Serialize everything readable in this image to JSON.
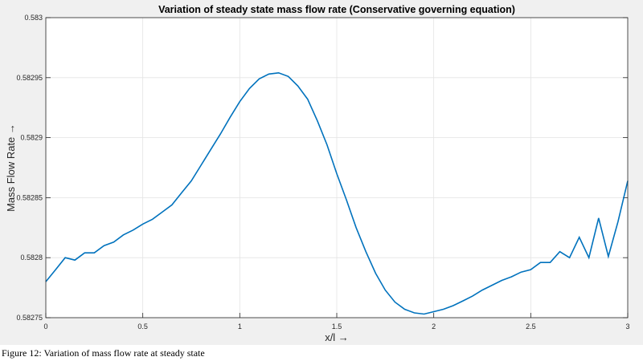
{
  "chart_data": {
    "type": "line",
    "title": "Variation of steady state mass flow rate (Conservative governing equation)",
    "xlabel": "x/l →",
    "ylabel": "Mass Flow Rate →",
    "xlim": [
      0,
      3
    ],
    "ylim": [
      0.58275,
      0.583
    ],
    "xticks": [
      0,
      0.5,
      1,
      1.5,
      2,
      2.5,
      3
    ],
    "xtick_labels": [
      "0",
      "0.5",
      "1",
      "1.5",
      "2",
      "2.5",
      "3"
    ],
    "yticks": [
      0.58275,
      0.5828,
      0.58285,
      0.5829,
      0.58295,
      0.583
    ],
    "ytick_labels": [
      "0.58275",
      "0.5828",
      "0.58285",
      "0.5829",
      "0.58295",
      "0.583"
    ],
    "grid": true,
    "line_color": "#0072bd",
    "x": [
      0,
      0.05,
      0.1,
      0.15,
      0.2,
      0.25,
      0.3,
      0.35,
      0.4,
      0.45,
      0.5,
      0.55,
      0.6,
      0.65,
      0.7,
      0.75,
      0.8,
      0.85,
      0.9,
      0.95,
      1.0,
      1.05,
      1.1,
      1.15,
      1.2,
      1.25,
      1.3,
      1.35,
      1.4,
      1.45,
      1.5,
      1.55,
      1.6,
      1.65,
      1.7,
      1.75,
      1.8,
      1.85,
      1.9,
      1.95,
      2.0,
      2.05,
      2.1,
      2.15,
      2.2,
      2.25,
      2.3,
      2.35,
      2.4,
      2.45,
      2.5,
      2.55,
      2.6,
      2.65,
      2.7,
      2.75,
      2.8,
      2.85,
      2.9,
      2.95,
      3.0
    ],
    "y": [
      0.58278,
      0.58279,
      0.5828,
      0.582798,
      0.582804,
      0.582804,
      0.58281,
      0.582813,
      0.582819,
      0.582823,
      0.582828,
      0.582832,
      0.582838,
      0.582844,
      0.582854,
      0.582864,
      0.582877,
      0.58289,
      0.582903,
      0.582917,
      0.58293,
      0.582941,
      0.582949,
      0.582953,
      0.582954,
      0.582951,
      0.582943,
      0.582932,
      0.582914,
      0.582894,
      0.58287,
      0.582848,
      0.582825,
      0.582805,
      0.582787,
      0.582773,
      0.582763,
      0.582757,
      0.582754,
      0.582753,
      0.582755,
      0.582757,
      0.58276,
      0.582764,
      0.582768,
      0.582773,
      0.582777,
      0.582781,
      0.582784,
      0.582788,
      0.58279,
      0.582796,
      0.582796,
      0.582805,
      0.5828,
      0.582817,
      0.5828,
      0.582833,
      0.582801,
      0.58283,
      0.582864
    ]
  },
  "caption": "Figure 12: Variation of mass flow rate at steady state"
}
